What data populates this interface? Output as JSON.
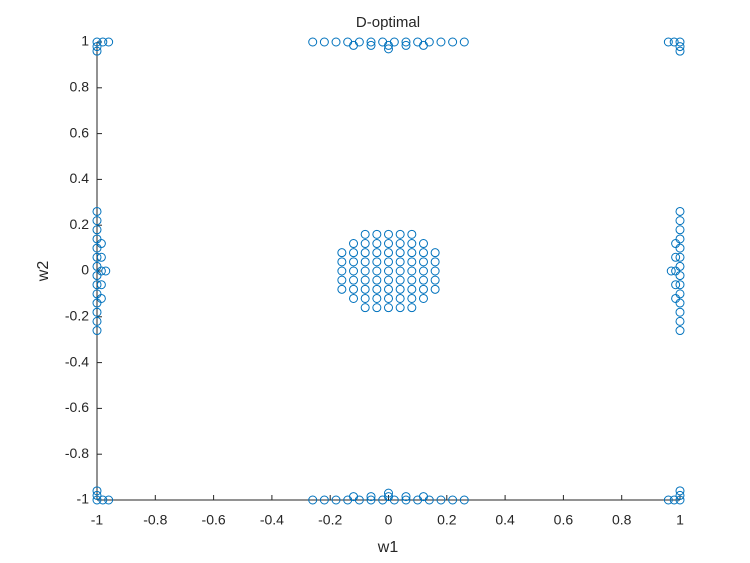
{
  "chart_data": {
    "type": "scatter",
    "title": "D-optimal",
    "x_label": "w1",
    "y_label": "w2",
    "color": "#0072BD",
    "xlim": [
      -1,
      1
    ],
    "ylim": [
      -1,
      1
    ],
    "xticks": [
      -1,
      -0.8,
      -0.6,
      -0.4,
      -0.2,
      0,
      0.2,
      0.4,
      0.6,
      0.8,
      1
    ],
    "yticks": [
      -1,
      -0.8,
      -0.6,
      -0.4,
      -0.2,
      0,
      0.2,
      0.4,
      0.6,
      0.8,
      1
    ],
    "x": [
      -0.08,
      -0.04,
      0,
      0.04,
      0.08,
      -0.12,
      -0.08,
      -0.04,
      0,
      0.04,
      0.08,
      0.12,
      -0.16,
      -0.12,
      -0.08,
      -0.04,
      0,
      0.04,
      0.08,
      0.12,
      0.16,
      -0.16,
      -0.12,
      -0.08,
      -0.04,
      0,
      0.04,
      0.08,
      0.12,
      0.16,
      -0.16,
      -0.12,
      -0.08,
      -0.04,
      0,
      0.04,
      0.08,
      0.12,
      0.16,
      -0.16,
      -0.12,
      -0.08,
      -0.04,
      0,
      0.04,
      0.08,
      0.12,
      0.16,
      -0.16,
      -0.12,
      -0.08,
      -0.04,
      0,
      0.04,
      0.08,
      0.12,
      0.16,
      -0.12,
      -0.08,
      -0.04,
      0,
      0.04,
      0.08,
      0.12,
      -0.08,
      -0.04,
      0,
      0.04,
      0.08,
      -0.26,
      -0.22,
      -0.18,
      -0.14,
      -0.1,
      -0.06,
      -0.02,
      0.02,
      0.06,
      0.1,
      0.14,
      0.18,
      0.22,
      0.26,
      -0.12,
      -0.06,
      0,
      0.06,
      0.12,
      0,
      -0.26,
      -0.22,
      -0.18,
      -0.14,
      -0.1,
      -0.06,
      -0.02,
      0.02,
      0.06,
      0.1,
      0.14,
      0.18,
      0.22,
      0.26,
      -0.12,
      -0.06,
      0,
      0.06,
      0.12,
      0,
      -1,
      -1,
      -1,
      -1,
      -1,
      -1,
      -1,
      -1,
      -1,
      -1,
      -1,
      -1,
      -1,
      -1,
      -0.985,
      -0.985,
      -0.985,
      -0.985,
      -0.985,
      -0.97,
      1,
      1,
      1,
      1,
      1,
      1,
      1,
      1,
      1,
      1,
      1,
      1,
      1,
      1,
      0.985,
      0.985,
      0.985,
      0.985,
      0.985,
      0.97,
      -1,
      -0.98,
      -0.96,
      -1,
      -1,
      1,
      0.98,
      0.96,
      1,
      1,
      -1,
      -0.98,
      -0.96,
      -1,
      -1,
      1,
      0.98,
      0.96,
      1,
      1
    ],
    "values": [
      -0.16,
      -0.16,
      -0.16,
      -0.16,
      -0.16,
      -0.12,
      -0.12,
      -0.12,
      -0.12,
      -0.12,
      -0.12,
      -0.12,
      -0.08,
      -0.08,
      -0.08,
      -0.08,
      -0.08,
      -0.08,
      -0.08,
      -0.08,
      -0.08,
      -0.04,
      -0.04,
      -0.04,
      -0.04,
      -0.04,
      -0.04,
      -0.04,
      -0.04,
      -0.04,
      0,
      0,
      0,
      0,
      0,
      0,
      0,
      0,
      0,
      0.04,
      0.04,
      0.04,
      0.04,
      0.04,
      0.04,
      0.04,
      0.04,
      0.04,
      0.08,
      0.08,
      0.08,
      0.08,
      0.08,
      0.08,
      0.08,
      0.08,
      0.08,
      0.12,
      0.12,
      0.12,
      0.12,
      0.12,
      0.12,
      0.12,
      0.16,
      0.16,
      0.16,
      0.16,
      0.16,
      1,
      1,
      1,
      1,
      1,
      1,
      1,
      1,
      1,
      1,
      1,
      1,
      1,
      1,
      0.985,
      0.985,
      0.985,
      0.985,
      0.985,
      0.97,
      -1,
      -1,
      -1,
      -1,
      -1,
      -1,
      -1,
      -1,
      -1,
      -1,
      -1,
      -1,
      -1,
      -1,
      -0.985,
      -0.985,
      -0.985,
      -0.985,
      -0.985,
      -0.97,
      -0.26,
      -0.22,
      -0.18,
      -0.14,
      -0.1,
      -0.06,
      -0.02,
      0.02,
      0.06,
      0.1,
      0.14,
      0.18,
      0.22,
      0.26,
      -0.12,
      -0.06,
      0,
      0.06,
      0.12,
      0,
      -0.26,
      -0.22,
      -0.18,
      -0.14,
      -0.1,
      -0.06,
      -0.02,
      0.02,
      0.06,
      0.1,
      0.14,
      0.18,
      0.22,
      0.26,
      -0.12,
      -0.06,
      0,
      0.06,
      0.12,
      0,
      1,
      1,
      1,
      0.98,
      0.96,
      1,
      1,
      1,
      0.98,
      0.96,
      -1,
      -1,
      -1,
      -0.98,
      -0.96,
      -1,
      -1,
      -1,
      -0.98,
      -0.96
    ]
  }
}
